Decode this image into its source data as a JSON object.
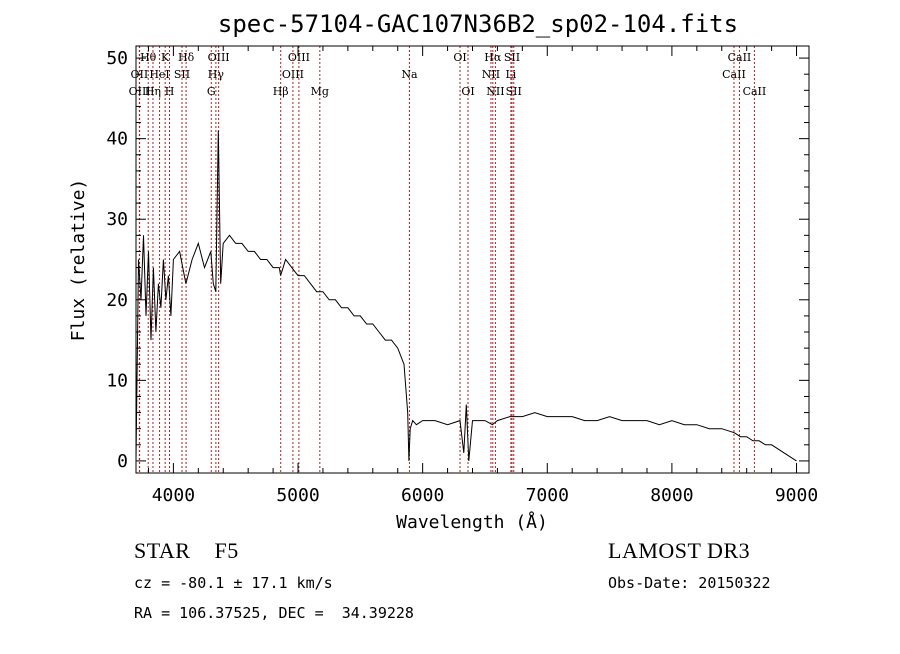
{
  "chart_data": {
    "type": "line",
    "title": "spec-57104-GAC107N36B2_sp02-104.fits",
    "xlabel": "Wavelength (Å)",
    "ylabel": "Flux (relative)",
    "xlim": [
      3700,
      9100
    ],
    "ylim": [
      -1.5,
      51.5
    ],
    "xticks": [
      4000,
      5000,
      6000,
      7000,
      8000,
      9000
    ],
    "yticks": [
      0,
      10,
      20,
      30,
      40,
      50
    ],
    "series": [
      {
        "name": "flux",
        "x": [
          3700,
          3720,
          3740,
          3760,
          3780,
          3800,
          3820,
          3840,
          3860,
          3880,
          3900,
          3920,
          3940,
          3960,
          3980,
          4000,
          4050,
          4100,
          4150,
          4200,
          4250,
          4300,
          4320,
          4340,
          4360,
          4380,
          4400,
          4450,
          4500,
          4550,
          4600,
          4650,
          4700,
          4750,
          4800,
          4850,
          4860,
          4880,
          4900,
          4950,
          5000,
          5050,
          5100,
          5150,
          5200,
          5250,
          5300,
          5350,
          5400,
          5450,
          5500,
          5550,
          5600,
          5650,
          5700,
          5750,
          5800,
          5850,
          5880,
          5890,
          5900,
          5920,
          5950,
          6000,
          6100,
          6200,
          6300,
          6330,
          6350,
          6370,
          6400,
          6500,
          6560,
          6600,
          6700,
          6800,
          6900,
          7000,
          7100,
          7200,
          7300,
          7400,
          7500,
          7600,
          7700,
          7800,
          7900,
          8000,
          8100,
          8200,
          8300,
          8400,
          8500,
          8550,
          8600,
          8650,
          8700,
          8750,
          8800,
          8850,
          8900,
          8950,
          9000
        ],
        "y": [
          0,
          25,
          20,
          28,
          18,
          26,
          15,
          24,
          16,
          22,
          19,
          25,
          20,
          23,
          18,
          25,
          26,
          22,
          25,
          27,
          24,
          26,
          22,
          21,
          41,
          22,
          27,
          28,
          27,
          27,
          26,
          26,
          25,
          25,
          24,
          24,
          23,
          24,
          25,
          24,
          23,
          23,
          22,
          21,
          21,
          20,
          20,
          19,
          19,
          18,
          18,
          17,
          17,
          16,
          15,
          15,
          14,
          12,
          6,
          0,
          4,
          5,
          4.5,
          5,
          5,
          4.5,
          5,
          1,
          7,
          0,
          5,
          5,
          4.5,
          5,
          5.5,
          5.5,
          6,
          5.5,
          5.5,
          5.5,
          5,
          5,
          5.5,
          5,
          5,
          5,
          4.5,
          5,
          4.5,
          4.5,
          4,
          4,
          3.5,
          3,
          3,
          2.5,
          2.5,
          2,
          2,
          1.5,
          1,
          0.5,
          0
        ]
      }
    ],
    "lines": [
      {
        "label": "Hθ",
        "x": 3798,
        "row": 0
      },
      {
        "label": "OII",
        "x": 3727,
        "row": 1
      },
      {
        "label": "OIII",
        "x": 3729,
        "row": 2
      },
      {
        "label": "K",
        "x": 3934,
        "row": 0
      },
      {
        "label": "HeI",
        "x": 3889,
        "row": 1
      },
      {
        "label": "Hη",
        "x": 3836,
        "row": 2
      },
      {
        "label": "H",
        "x": 3969,
        "row": 2
      },
      {
        "label": "SII",
        "x": 4069,
        "row": 1
      },
      {
        "label": "Hδ",
        "x": 4102,
        "row": 0
      },
      {
        "label": "OIII",
        "x": 4363,
        "row": 0
      },
      {
        "label": "Hγ",
        "x": 4341,
        "row": 1
      },
      {
        "label": "G",
        "x": 4304,
        "row": 2
      },
      {
        "label": "Hβ",
        "x": 4861,
        "row": 2
      },
      {
        "label": "OIII",
        "x": 5007,
        "row": 0
      },
      {
        "label": "OIII",
        "x": 4959,
        "row": 1
      },
      {
        "label": "Mg",
        "x": 5175,
        "row": 2
      },
      {
        "label": "Na",
        "x": 5894,
        "row": 1
      },
      {
        "label": "OI",
        "x": 6300,
        "row": 0
      },
      {
        "label": "OI",
        "x": 6364,
        "row": 2
      },
      {
        "label": "Hα",
        "x": 6563,
        "row": 0
      },
      {
        "label": "NII",
        "x": 6548,
        "row": 1
      },
      {
        "label": "NII",
        "x": 6584,
        "row": 2
      },
      {
        "label": "SII",
        "x": 6717,
        "row": 0
      },
      {
        "label": "Li",
        "x": 6708,
        "row": 1
      },
      {
        "label": "SII",
        "x": 6731,
        "row": 2
      },
      {
        "label": "CaII",
        "x": 8542,
        "row": 0
      },
      {
        "label": "CaII",
        "x": 8498,
        "row": 1
      },
      {
        "label": "CaII",
        "x": 8662,
        "row": 2
      }
    ],
    "line_color": "#b22222"
  },
  "footer": {
    "classification": "STAR    F5",
    "survey": "LAMOST DR3",
    "cz": "cz = -80.1 ± 17.1 km/s",
    "obs_date": "Obs-Date: 20150322",
    "radec": "RA = 106.37525, DEC =  34.39228"
  }
}
